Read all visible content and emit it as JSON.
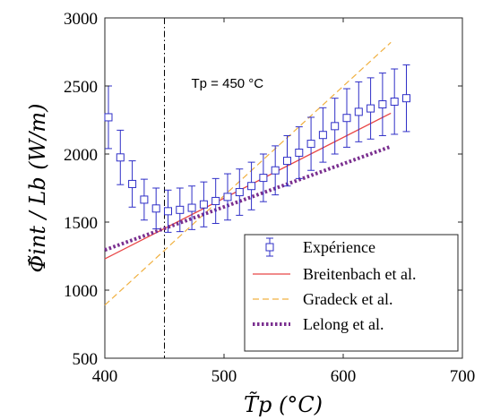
{
  "chart_data": {
    "type": "line",
    "xlim": [
      400,
      700
    ],
    "ylim": [
      500,
      3000
    ],
    "x_ticks": [
      400,
      500,
      600,
      700
    ],
    "y_ticks": [
      500,
      1000,
      1500,
      2000,
      2500,
      3000
    ],
    "xlabel": "T̃p (°C)",
    "ylabel": "Φ̃int / Lb (W/m)",
    "grid": false,
    "legend_position": "bottom-right",
    "annotation": {
      "text": "Tp = 450 °C",
      "x": 450
    },
    "series": [
      {
        "name": "Expérience",
        "kind": "errorbar",
        "color": "#2f2fc7",
        "x": [
          403,
          413,
          423,
          433,
          443,
          453,
          463,
          473,
          483,
          493,
          503,
          513,
          523,
          533,
          543,
          553,
          563,
          573,
          583,
          593,
          603,
          613,
          623,
          633,
          643,
          653
        ],
        "y": [
          2270,
          1975,
          1780,
          1665,
          1600,
          1580,
          1590,
          1605,
          1630,
          1655,
          1685,
          1720,
          1765,
          1825,
          1880,
          1950,
          2010,
          2075,
          2140,
          2205,
          2265,
          2310,
          2335,
          2365,
          2385,
          2410
        ],
        "err": [
          230,
          200,
          170,
          150,
          150,
          155,
          160,
          160,
          165,
          165,
          170,
          170,
          175,
          175,
          180,
          185,
          190,
          195,
          200,
          205,
          215,
          220,
          225,
          230,
          240,
          245
        ]
      },
      {
        "name": "Breitenbach et al.",
        "kind": "solid",
        "color": "#e84646",
        "x": [
          400,
          640
        ],
        "y": [
          1230,
          2300
        ]
      },
      {
        "name": "Gradeck et al.",
        "kind": "dashed",
        "color": "#f0b040",
        "x": [
          400,
          640
        ],
        "y": [
          890,
          2820
        ]
      },
      {
        "name": "Lelong et al.",
        "kind": "dotted",
        "color": "#7a2f8f",
        "x": [
          400,
          640
        ],
        "y": [
          1295,
          2055
        ]
      }
    ]
  }
}
